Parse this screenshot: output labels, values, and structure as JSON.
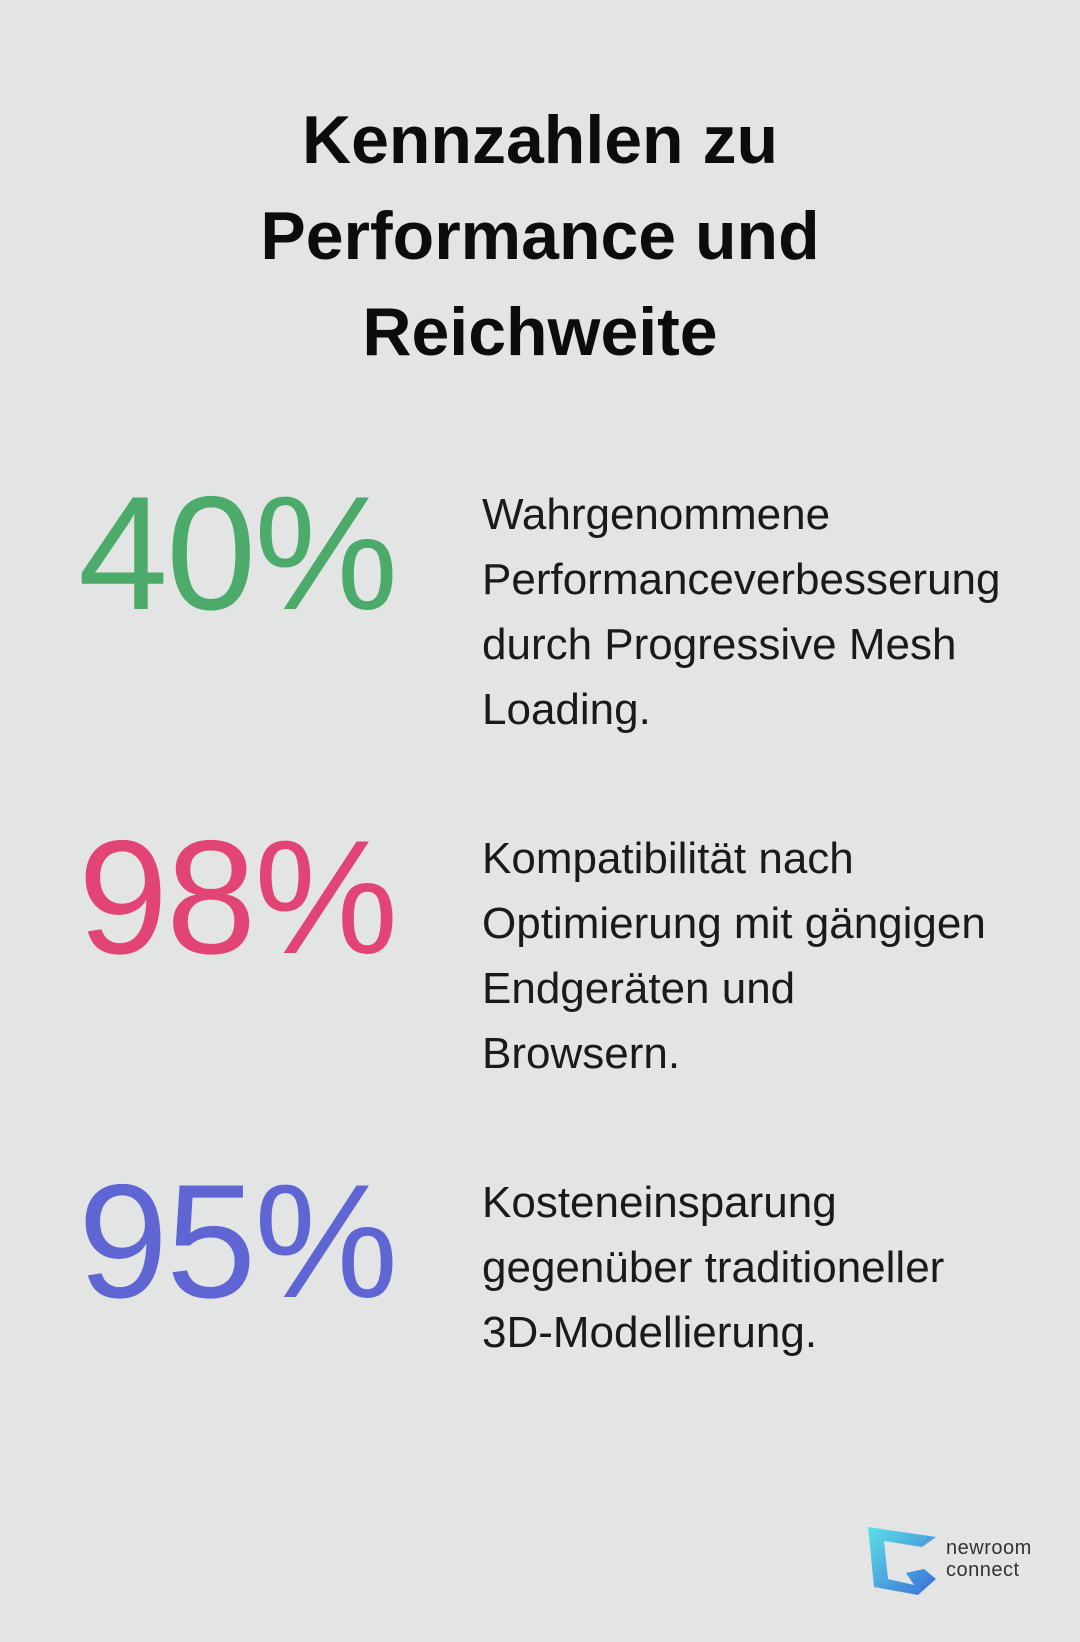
{
  "header": {
    "title": "Kennzahlen zu Performance und Reichweite"
  },
  "stats": [
    {
      "value": "40%",
      "color": "#4caa6b",
      "text": "Wahrgenommene Performanceverbesserung durch Progressive Mesh Loading."
    },
    {
      "value": "98%",
      "color": "#e34476",
      "text": "Kompatibilität nach Optimierung mit gängigen Endgeräten und Browsern."
    },
    {
      "value": "95%",
      "color": "#5f66d3",
      "text": "Kosteneinsparung gegenüber traditioneller 3D-Modellierung."
    }
  ],
  "logo": {
    "line1": "newroom",
    "line2": "connect"
  }
}
